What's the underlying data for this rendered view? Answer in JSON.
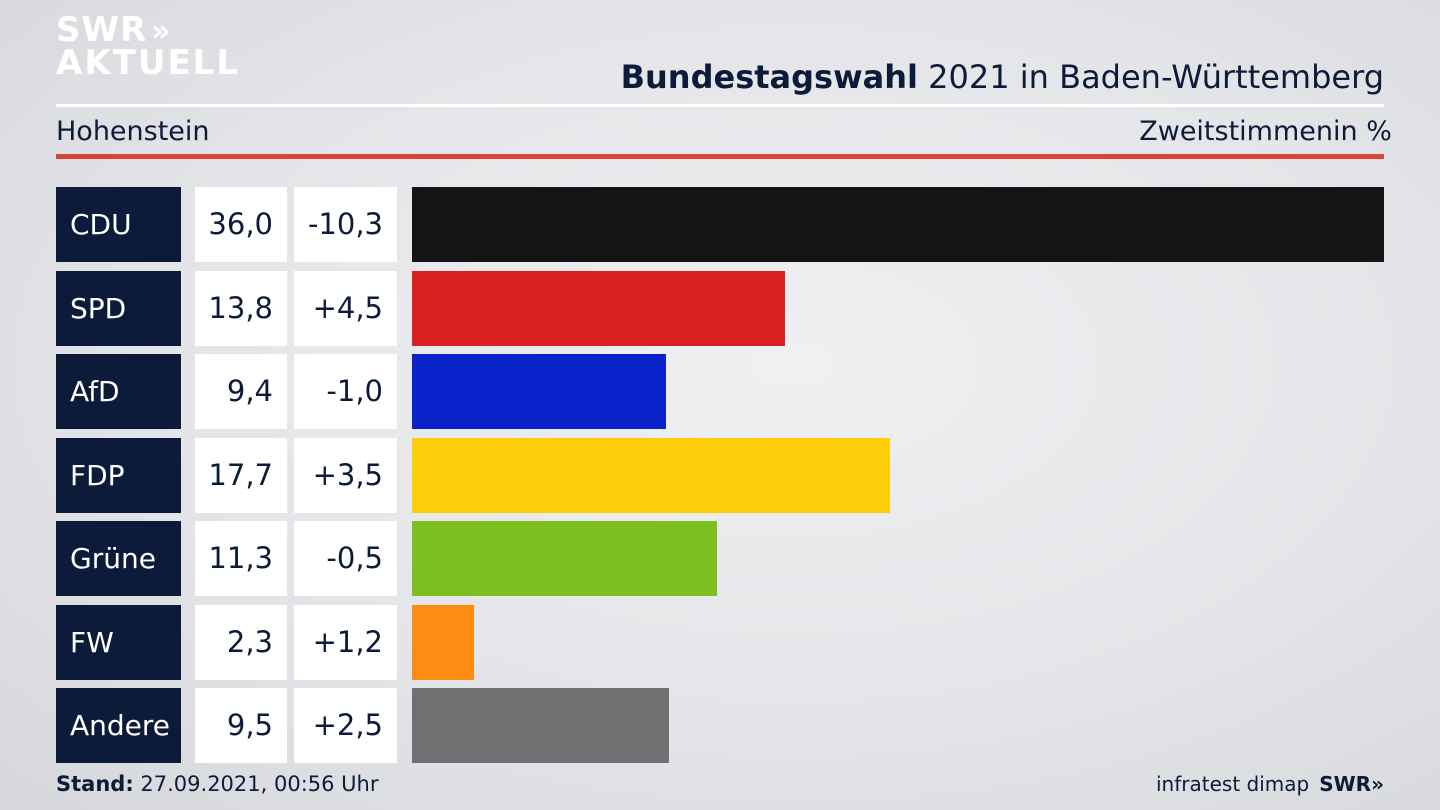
{
  "logo": {
    "line1": "SWR",
    "chevrons": "»",
    "line2": "AKTUELL"
  },
  "header": {
    "title_bold": "Bundestagswahl",
    "title_rest": " 2021 in Baden-Württemberg",
    "location": "Hohenstein",
    "metric": "Zweitstimmen",
    "unit": "in %"
  },
  "chart_data": {
    "type": "bar",
    "orientation": "horizontal",
    "categories": [
      "CDU",
      "SPD",
      "AfD",
      "FDP",
      "Grüne",
      "FW",
      "Andere"
    ],
    "values": [
      36.0,
      13.8,
      9.4,
      17.7,
      11.3,
      2.3,
      9.5
    ],
    "labels": [
      "36,0",
      "13,8",
      "9,4",
      "17,7",
      "11,3",
      "2,3",
      "9,5"
    ],
    "diffs": [
      "-10,3",
      "+4,5",
      "-1,0",
      "+3,5",
      "-0,5",
      "+1,2",
      "+2,5"
    ],
    "colors": [
      "#141414",
      "#d91f1f",
      "#0a22c9",
      "#fdcd0a",
      "#7cbf1e",
      "#fd8c15",
      "#707073"
    ],
    "xlim": [
      0,
      36.0
    ]
  },
  "footer": {
    "stand_label": "Stand:",
    "stand_value": " 27.09.2021, 00:56 Uhr",
    "source": "infratest dimap",
    "brand": "SWR»"
  }
}
